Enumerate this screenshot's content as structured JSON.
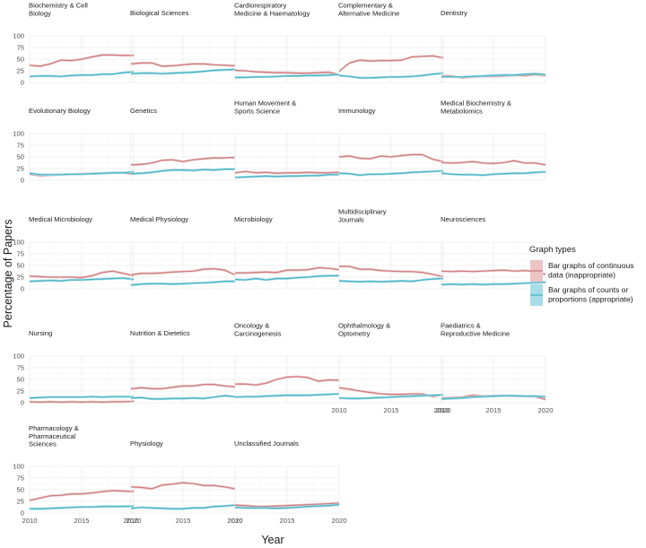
{
  "chart_data": {
    "type": "line",
    "title": "",
    "xlabel": "Year",
    "ylabel": "Percentage of Papers",
    "xlim": [
      2010,
      2020
    ],
    "ylim": [
      0,
      100
    ],
    "x_ticks": [
      2010,
      2015,
      2020
    ],
    "y_ticks": [
      0,
      25,
      50,
      75,
      100
    ],
    "years": [
      2010,
      2011,
      2012,
      2013,
      2014,
      2015,
      2016,
      2017,
      2018,
      2019,
      2020
    ],
    "legend": {
      "title": "Graph types",
      "entries": [
        {
          "key": "inappropriate",
          "lines": [
            "Bar graphs of continuous",
            "data (inappropriate)"
          ]
        },
        {
          "key": "appropriate",
          "lines": [
            "Bar graphs of counts or",
            "proportions (appropriate)"
          ]
        }
      ]
    },
    "colors": {
      "inappropriate_line": "#c97b7b",
      "inappropriate_band": "#ecc4c4",
      "appropriate_line": "#40b0c4",
      "appropriate_band": "#a9dce6",
      "grid": "#ebebeb",
      "axis_text": "#4d4d4d"
    },
    "panels": [
      {
        "title_lines": [
          "Biochemistry & Cell",
          "Biology"
        ],
        "inappropriate": [
          37,
          35,
          40,
          48,
          47,
          50,
          55,
          59,
          59,
          58,
          58
        ],
        "appropriate": [
          13,
          14,
          14,
          13,
          15,
          16,
          16,
          18,
          18,
          21,
          23
        ]
      },
      {
        "title_lines": [
          "Biological Sciences"
        ],
        "inappropriate": [
          40,
          42,
          42,
          35,
          36,
          38,
          40,
          40,
          38,
          37,
          36
        ],
        "appropriate": [
          19,
          20,
          20,
          19,
          20,
          21,
          22,
          24,
          26,
          27,
          28
        ]
      },
      {
        "title_lines": [
          "Cardiorespiratory",
          "Medicine & Haematology"
        ],
        "inappropriate": [
          26,
          25,
          23,
          22,
          21,
          21,
          20,
          20,
          21,
          22,
          17
        ],
        "appropriate": [
          11,
          11,
          12,
          12,
          13,
          14,
          14,
          15,
          15,
          16,
          17
        ]
      },
      {
        "title_lines": [
          "Complementary &",
          "Alternative Medicine"
        ],
        "inappropriate": [
          24,
          42,
          48,
          46,
          47,
          47,
          48,
          55,
          56,
          57,
          53
        ],
        "appropriate": [
          15,
          13,
          10,
          10,
          11,
          12,
          12,
          13,
          15,
          18,
          20
        ]
      },
      {
        "title_lines": [
          "Dentistry"
        ],
        "inappropriate": [
          14,
          14,
          10,
          12,
          13,
          13,
          14,
          15,
          15,
          17,
          15
        ],
        "appropriate": [
          12,
          12,
          12,
          13,
          14,
          15,
          16,
          16,
          18,
          19,
          17
        ]
      },
      {
        "title_lines": [
          "Evolutionary Biology"
        ],
        "inappropriate": [
          13,
          10,
          11,
          12,
          13,
          14,
          14,
          15,
          16,
          16,
          13
        ],
        "appropriate": [
          15,
          12,
          12,
          12,
          13,
          13,
          14,
          15,
          16,
          16,
          18
        ]
      },
      {
        "title_lines": [
          "Genetics"
        ],
        "inappropriate": [
          33,
          34,
          37,
          43,
          44,
          40,
          44,
          46,
          48,
          48,
          49
        ],
        "appropriate": [
          14,
          15,
          17,
          20,
          22,
          22,
          21,
          23,
          22,
          24,
          24
        ]
      },
      {
        "title_lines": [
          "Human Movement &",
          "Sports Science"
        ],
        "inappropriate": [
          16,
          19,
          16,
          17,
          15,
          16,
          16,
          17,
          16,
          16,
          17
        ],
        "appropriate": [
          6,
          7,
          8,
          9,
          8,
          9,
          9,
          10,
          10,
          12,
          12
        ]
      },
      {
        "title_lines": [
          "Immunology"
        ],
        "inappropriate": [
          50,
          52,
          47,
          46,
          52,
          50,
          53,
          55,
          55,
          45,
          40
        ],
        "appropriate": [
          15,
          14,
          11,
          13,
          13,
          14,
          15,
          17,
          18,
          19,
          20
        ]
      },
      {
        "title_lines": [
          "Medical Biochemistry &",
          "Metabolomics"
        ],
        "inappropriate": [
          38,
          37,
          38,
          40,
          37,
          36,
          38,
          42,
          37,
          37,
          33
        ],
        "appropriate": [
          15,
          13,
          12,
          12,
          11,
          13,
          14,
          15,
          15,
          17,
          18
        ]
      },
      {
        "title_lines": [
          "Medical Microbiology"
        ],
        "inappropriate": [
          27,
          26,
          25,
          25,
          25,
          24,
          28,
          35,
          38,
          33,
          28
        ],
        "appropriate": [
          16,
          17,
          18,
          17,
          19,
          19,
          20,
          21,
          22,
          23,
          20
        ]
      },
      {
        "title_lines": [
          "Medical Physiology"
        ],
        "inappropriate": [
          30,
          33,
          33,
          34,
          36,
          37,
          38,
          42,
          43,
          40,
          30
        ],
        "appropriate": [
          8,
          10,
          11,
          11,
          10,
          11,
          12,
          13,
          14,
          16,
          16
        ]
      },
      {
        "title_lines": [
          "Microbiology"
        ],
        "inappropriate": [
          34,
          34,
          35,
          36,
          35,
          40,
          40,
          41,
          45,
          44,
          41
        ],
        "appropriate": [
          20,
          19,
          22,
          19,
          22,
          22,
          24,
          25,
          27,
          28,
          28
        ]
      },
      {
        "title_lines": [
          "Multidisciplinary",
          "Journals"
        ],
        "inappropriate": [
          48,
          48,
          42,
          42,
          39,
          38,
          37,
          37,
          35,
          31,
          26
        ],
        "appropriate": [
          17,
          16,
          15,
          16,
          15,
          16,
          17,
          16,
          19,
          21,
          22
        ]
      },
      {
        "title_lines": [
          "Neurosciences"
        ],
        "inappropriate": [
          38,
          37,
          38,
          37,
          38,
          39,
          40,
          38,
          39,
          37,
          31
        ],
        "appropriate": [
          9,
          10,
          9,
          10,
          9,
          10,
          10,
          11,
          12,
          13,
          14
        ]
      },
      {
        "title_lines": [
          "Nursing"
        ],
        "inappropriate": [
          2,
          1,
          2,
          1,
          2,
          1,
          2,
          1,
          2,
          2,
          3
        ],
        "appropriate": [
          10,
          11,
          12,
          12,
          12,
          12,
          13,
          12,
          13,
          13,
          13
        ]
      },
      {
        "title_lines": [
          "Nutrition & Dietetics"
        ],
        "inappropriate": [
          30,
          32,
          30,
          30,
          33,
          36,
          36,
          39,
          39,
          36,
          34
        ],
        "appropriate": [
          10,
          11,
          8,
          8,
          9,
          9,
          10,
          9,
          12,
          15,
          13
        ]
      },
      {
        "title_lines": [
          "Oncology &",
          "Carcinogenesis"
        ],
        "inappropriate": [
          40,
          40,
          38,
          42,
          50,
          55,
          56,
          54,
          46,
          49,
          48
        ],
        "appropriate": [
          12,
          13,
          13,
          14,
          15,
          16,
          16,
          16,
          17,
          18,
          19
        ]
      },
      {
        "title_lines": [
          "Ophthalmology &",
          "Optometry"
        ],
        "inappropriate": [
          32,
          29,
          25,
          22,
          19,
          18,
          18,
          19,
          19,
          13,
          18
        ],
        "appropriate": [
          10,
          9,
          9,
          10,
          11,
          12,
          13,
          14,
          15,
          16,
          17
        ]
      },
      {
        "title_lines": [
          "Paediatrics &",
          "Reproductive Medicine"
        ],
        "inappropriate": [
          10,
          11,
          12,
          16,
          14,
          15,
          15,
          14,
          14,
          13,
          7
        ],
        "appropriate": [
          8,
          9,
          10,
          12,
          13,
          14,
          15,
          15,
          14,
          14,
          13
        ]
      },
      {
        "title_lines": [
          "Pharmacology &",
          "Pharmaceutical",
          "Sciences"
        ],
        "inappropriate": [
          27,
          32,
          37,
          38,
          41,
          41,
          43,
          46,
          48,
          47,
          46
        ],
        "appropriate": [
          9,
          9,
          10,
          11,
          12,
          13,
          13,
          14,
          14,
          14,
          15
        ]
      },
      {
        "title_lines": [
          "Physiology"
        ],
        "inappropriate": [
          56,
          55,
          52,
          60,
          62,
          65,
          63,
          59,
          59,
          56,
          52
        ],
        "appropriate": [
          10,
          12,
          11,
          10,
          9,
          9,
          11,
          11,
          14,
          15,
          17
        ]
      },
      {
        "title_lines": [
          "Unclassified Journals"
        ],
        "inappropriate": [
          17,
          16,
          14,
          14,
          15,
          16,
          17,
          18,
          19,
          20,
          21
        ],
        "appropriate": [
          12,
          11,
          11,
          11,
          10,
          11,
          12,
          14,
          15,
          16,
          18
        ]
      }
    ]
  }
}
